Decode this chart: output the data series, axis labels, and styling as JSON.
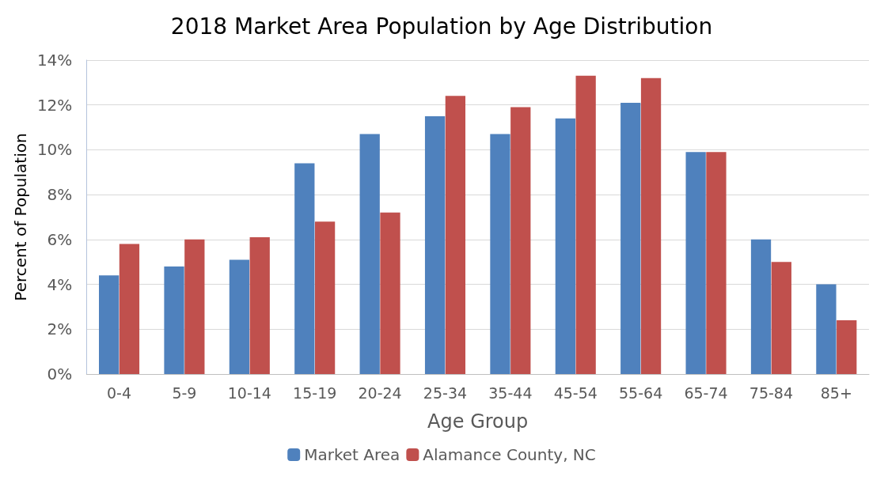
{
  "chart_data": {
    "type": "bar",
    "title": "2018 Market Area Population by Age Distribution",
    "xlabel": "Age Group",
    "ylabel": "Percent of Population",
    "categories": [
      "0-4",
      "5-9",
      "10-14",
      "15-19",
      "20-24",
      "25-34",
      "35-44",
      "45-54",
      "55-64",
      "65-74",
      "75-84",
      "85+"
    ],
    "series": [
      {
        "name": "Market Area",
        "color": "#4f81bd",
        "values": [
          4.4,
          4.8,
          5.1,
          9.4,
          10.7,
          11.5,
          10.7,
          11.4,
          12.1,
          9.9,
          6.0,
          4.0
        ]
      },
      {
        "name": "Alamance County, NC",
        "color": "#c0504d",
        "values": [
          5.8,
          6.0,
          6.1,
          6.8,
          7.2,
          12.4,
          11.9,
          13.3,
          13.2,
          9.9,
          5.0,
          2.4
        ]
      }
    ],
    "ylim": [
      0,
      14
    ],
    "yticks": [
      {
        "value": 0,
        "label": "0%"
      },
      {
        "value": 2,
        "label": "2%"
      },
      {
        "value": 4,
        "label": "4%"
      },
      {
        "value": 6,
        "label": "6%"
      },
      {
        "value": 8,
        "label": "8%"
      },
      {
        "value": 10,
        "label": "10%"
      },
      {
        "value": 12,
        "label": "12%"
      },
      {
        "value": 14,
        "label": "14%"
      }
    ],
    "grid": "y",
    "legend": "bottom"
  }
}
